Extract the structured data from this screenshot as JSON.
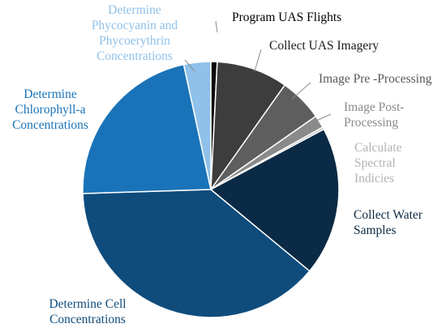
{
  "chart_data": {
    "type": "pie",
    "title": "",
    "slices": [
      {
        "label": "Program UAS Flights",
        "value": 0.8,
        "color": "#0b0b0b",
        "label_color": "#000000"
      },
      {
        "label": "Collect UAS Imagery",
        "value": 9.0,
        "color": "#3d3d3d",
        "label_color": "#1a1a1a"
      },
      {
        "label": "Image Pre -Processing",
        "value": 5.5,
        "color": "#5e5e5e",
        "label_color": "#595959"
      },
      {
        "label": "Image Post-\nProcessing",
        "value": 1.6,
        "color": "#8a8a8a",
        "label_color": "#8a8a8a"
      },
      {
        "label": "Calculate\nSpectral\nIndicies",
        "value": 0.3,
        "color": "#bdbdbd",
        "label_color": "#b3b3b3"
      },
      {
        "label": "Collect Water\nSamples",
        "value": 18.8,
        "color": "#0b2a45",
        "label_color": "#0b2a45"
      },
      {
        "label": "Determine Cell\nConcentrations",
        "value": 38.5,
        "color": "#0f4c7c",
        "label_color": "#0f4c7c"
      },
      {
        "label": "Determine\nChlorophyll-a\nConcentrations",
        "value": 22.1,
        "color": "#1a73b8",
        "label_color": "#1a73b8"
      },
      {
        "label": "Determine\nPhycocyanin and\nPhycoerythrin\nConcentrations",
        "value": 3.4,
        "color": "#8fc1ea",
        "label_color": "#8fc1ea"
      }
    ]
  }
}
